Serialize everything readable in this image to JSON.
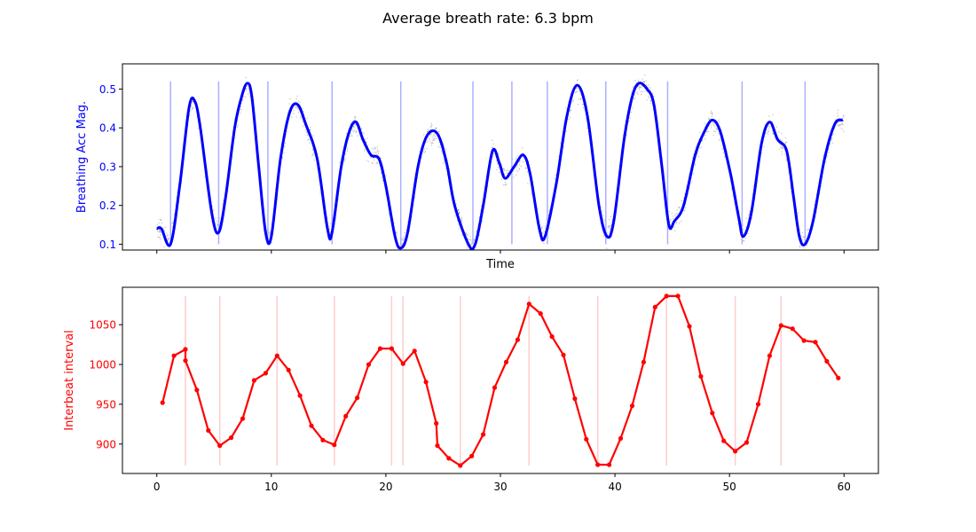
{
  "title": "Average breath rate: 6.3 bpm",
  "chart_data": [
    {
      "type": "line",
      "xlabel": "Time",
      "ylabel": "Breathing Acc Mag.",
      "xlim": [
        -3,
        63
      ],
      "ylim": [
        0.085,
        0.565
      ],
      "yticks": [
        0.1,
        0.2,
        0.3,
        0.4,
        0.5
      ],
      "ytick_labels": [
        "0.1",
        "0.2",
        "0.3",
        "0.4",
        "0.5"
      ],
      "xticks": [
        0,
        10,
        20,
        30,
        40,
        50,
        60
      ],
      "show_xtick_labels": false,
      "line_color": "#0000ff",
      "marker_color": "#aab0ff",
      "scatter_color": "#555555",
      "series": [
        {
          "name": "breathing",
          "points": [
            [
              0,
              0.14
            ],
            [
              0.4,
              0.14
            ],
            [
              1.2,
              0.1
            ],
            [
              2,
              0.25
            ],
            [
              2.8,
              0.45
            ],
            [
              3.3,
              0.47
            ],
            [
              3.8,
              0.4
            ],
            [
              4.8,
              0.18
            ],
            [
              5.4,
              0.13
            ],
            [
              6,
              0.22
            ],
            [
              6.8,
              0.4
            ],
            [
              7.4,
              0.48
            ],
            [
              7.9,
              0.515
            ],
            [
              8.3,
              0.48
            ],
            [
              8.9,
              0.3
            ],
            [
              9.5,
              0.13
            ],
            [
              10,
              0.12
            ],
            [
              10.8,
              0.32
            ],
            [
              11.6,
              0.44
            ],
            [
              12.3,
              0.46
            ],
            [
              13,
              0.41
            ],
            [
              14,
              0.32
            ],
            [
              14.9,
              0.14
            ],
            [
              15.3,
              0.13
            ],
            [
              16.1,
              0.3
            ],
            [
              16.8,
              0.39
            ],
            [
              17.4,
              0.415
            ],
            [
              18,
              0.37
            ],
            [
              18.7,
              0.33
            ],
            [
              19.4,
              0.32
            ],
            [
              20,
              0.25
            ],
            [
              20.8,
              0.12
            ],
            [
              21.3,
              0.09
            ],
            [
              21.9,
              0.13
            ],
            [
              22.8,
              0.3
            ],
            [
              23.6,
              0.38
            ],
            [
              24.5,
              0.385
            ],
            [
              25.3,
              0.31
            ],
            [
              26,
              0.2
            ],
            [
              27.2,
              0.1
            ],
            [
              27.8,
              0.1
            ],
            [
              28.5,
              0.2
            ],
            [
              29.3,
              0.34
            ],
            [
              29.9,
              0.31
            ],
            [
              30.4,
              0.27
            ],
            [
              31.2,
              0.3
            ],
            [
              32,
              0.33
            ],
            [
              32.6,
              0.28
            ],
            [
              33.4,
              0.14
            ],
            [
              33.9,
              0.12
            ],
            [
              34.9,
              0.26
            ],
            [
              35.8,
              0.43
            ],
            [
              36.7,
              0.51
            ],
            [
              37.6,
              0.43
            ],
            [
              38.6,
              0.2
            ],
            [
              39.3,
              0.12
            ],
            [
              39.9,
              0.16
            ],
            [
              40.8,
              0.37
            ],
            [
              41.5,
              0.48
            ],
            [
              42.1,
              0.515
            ],
            [
              42.8,
              0.5
            ],
            [
              43.4,
              0.46
            ],
            [
              44.1,
              0.3
            ],
            [
              44.7,
              0.15
            ],
            [
              45.2,
              0.16
            ],
            [
              46,
              0.2
            ],
            [
              47,
              0.33
            ],
            [
              47.8,
              0.39
            ],
            [
              48.5,
              0.42
            ],
            [
              49.2,
              0.39
            ],
            [
              50.1,
              0.28
            ],
            [
              50.8,
              0.17
            ],
            [
              51.2,
              0.12
            ],
            [
              51.9,
              0.18
            ],
            [
              52.8,
              0.36
            ],
            [
              53.5,
              0.415
            ],
            [
              54.2,
              0.37
            ],
            [
              55,
              0.34
            ],
            [
              55.6,
              0.22
            ],
            [
              56.1,
              0.12
            ],
            [
              56.6,
              0.1
            ],
            [
              57.3,
              0.16
            ],
            [
              58.3,
              0.32
            ],
            [
              59.2,
              0.41
            ],
            [
              59.9,
              0.42
            ]
          ]
        }
      ],
      "markers_x": [
        1.2,
        5.4,
        9.7,
        15.3,
        21.3,
        27.6,
        31,
        34.1,
        39.2,
        44.6,
        51.1,
        56.6
      ],
      "markers_y": [
        0.1,
        0.52
      ]
    },
    {
      "type": "line",
      "xlabel": "",
      "ylabel": "Interbeat interval",
      "xlim": [
        -3,
        63
      ],
      "ylim": [
        863,
        1097
      ],
      "yticks": [
        900,
        950,
        1000,
        1050
      ],
      "ytick_labels": [
        "900",
        "950",
        "1000",
        "1050"
      ],
      "xticks": [
        0,
        10,
        20,
        30,
        40,
        50,
        60
      ],
      "xtick_labels": [
        "0",
        "10",
        "20",
        "30",
        "40",
        "50",
        "60"
      ],
      "line_color": "#ff0000",
      "marker_color": "#ffcccc",
      "series": [
        {
          "name": "interbeat",
          "x": [
            0.5,
            1.5,
            2.5,
            2.5,
            3.5,
            4.5,
            5.5,
            6.5,
            7.5,
            8.5,
            9.5,
            10.5,
            11.5,
            12.5,
            13.5,
            14.5,
            15.5,
            16.5,
            17.5,
            18.5,
            19.5,
            20.5,
            21.5,
            22.5,
            23.5,
            24.4,
            24.5,
            25.5,
            26.5,
            27.5,
            28.5,
            29.5,
            30.5,
            31.5,
            32.5,
            33.5,
            34.5,
            35.5,
            36.5,
            37.5,
            38.5,
            39.5,
            40.5,
            41.5,
            42.5,
            43.5,
            44.5,
            45.5,
            46.5,
            47.5,
            48.5,
            49.5,
            50.5,
            51.5,
            52.5,
            53.5,
            54.5,
            55.5,
            56.5,
            57.5,
            58.5,
            59.5
          ],
          "values": [
            952,
            1011,
            1019,
            1005,
            968,
            917,
            898,
            908,
            932,
            980,
            989,
            1011,
            993,
            961,
            923,
            905,
            899,
            935,
            958,
            1000,
            1020,
            1020,
            1001,
            1017,
            978,
            926,
            898,
            882,
            873,
            885,
            912,
            971,
            1003,
            1031,
            1076,
            1064,
            1035,
            1012,
            957,
            906,
            874,
            874,
            907,
            948,
            1003,
            1072,
            1086,
            1086,
            1048,
            985,
            939,
            904,
            891,
            902,
            950,
            1011,
            1049,
            1045,
            1030,
            1028,
            1004,
            983
          ]
        }
      ],
      "markers_x": [
        2.5,
        5.5,
        10.5,
        15.5,
        20.5,
        21.5,
        26.5,
        32.5,
        38.5,
        44.5,
        50.5,
        54.5
      ],
      "markers_y": [
        873,
        1086
      ]
    }
  ]
}
